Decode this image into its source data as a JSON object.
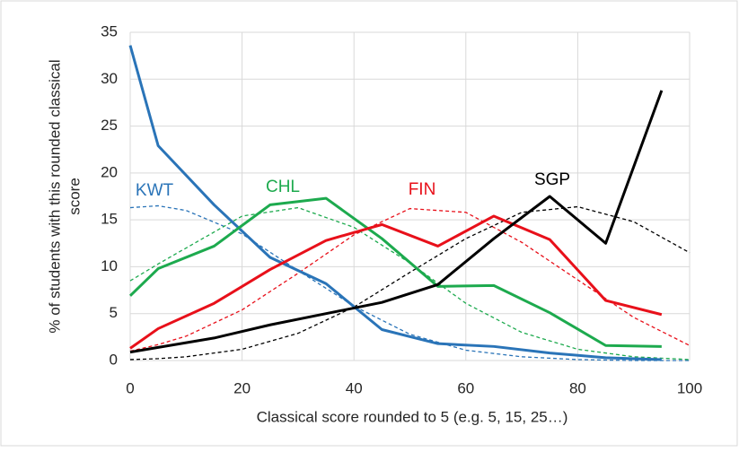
{
  "chart_data": {
    "type": "line",
    "xlabel": "Classical score rounded to 5 (e.g. 5, 15, 25…)",
    "ylabel": [
      "% of students with this rounded classical",
      "score"
    ],
    "x": [
      0,
      5,
      15,
      25,
      35,
      45,
      55,
      65,
      75,
      85,
      95
    ],
    "series": [
      {
        "name": "KWT",
        "color": "#2a74b8",
        "values": [
          33.6,
          22.9,
          16.6,
          11.0,
          8.2,
          3.3,
          1.8,
          1.5,
          0.8,
          0.3,
          0.1
        ]
      },
      {
        "name": "CHL",
        "color": "#1daa4e",
        "values": [
          6.9,
          9.8,
          12.2,
          16.6,
          17.3,
          13.0,
          7.9,
          8.0,
          5.1,
          1.6,
          1.5
        ]
      },
      {
        "name": "FIN",
        "color": "#e8101a",
        "values": [
          1.3,
          3.4,
          6.1,
          9.7,
          12.8,
          14.5,
          12.2,
          15.4,
          12.9,
          6.4,
          4.9
        ]
      },
      {
        "name": "SGP",
        "color": "#000000",
        "values": [
          0.9,
          1.4,
          2.4,
          3.8,
          5.0,
          6.2,
          8.1,
          13.0,
          17.5,
          12.5,
          28.8
        ]
      }
    ],
    "fit_x": [
      0,
      5,
      10,
      20,
      30,
      40,
      50,
      60,
      70,
      80,
      90,
      100
    ],
    "fits": [
      {
        "color": "#2a74b8",
        "values": [
          16.3,
          16.5,
          16.0,
          13.5,
          9.6,
          5.8,
          2.8,
          1.1,
          0.4,
          0.1,
          0,
          0
        ]
      },
      {
        "color": "#1daa4e",
        "values": [
          8.5,
          10.3,
          12.0,
          15.4,
          16.3,
          14.2,
          10.4,
          6.1,
          3.0,
          1.2,
          0.4,
          0.1
        ]
      },
      {
        "color": "#e8101a",
        "values": [
          1.0,
          1.7,
          2.6,
          5.4,
          9.3,
          13.4,
          16.2,
          15.8,
          12.6,
          8.6,
          4.6,
          1.6
        ]
      },
      {
        "color": "#000000",
        "values": [
          0.1,
          0.2,
          0.4,
          1.2,
          2.9,
          5.7,
          9.4,
          13.0,
          15.8,
          16.4,
          14.8,
          11.5
        ]
      }
    ],
    "xlim": [
      0,
      100
    ],
    "xticks": [
      0,
      20,
      40,
      60,
      80,
      100
    ],
    "ylim": [
      0,
      35
    ],
    "yticks": [
      0,
      5,
      10,
      15,
      20,
      25,
      30,
      35
    ],
    "grid": true
  }
}
